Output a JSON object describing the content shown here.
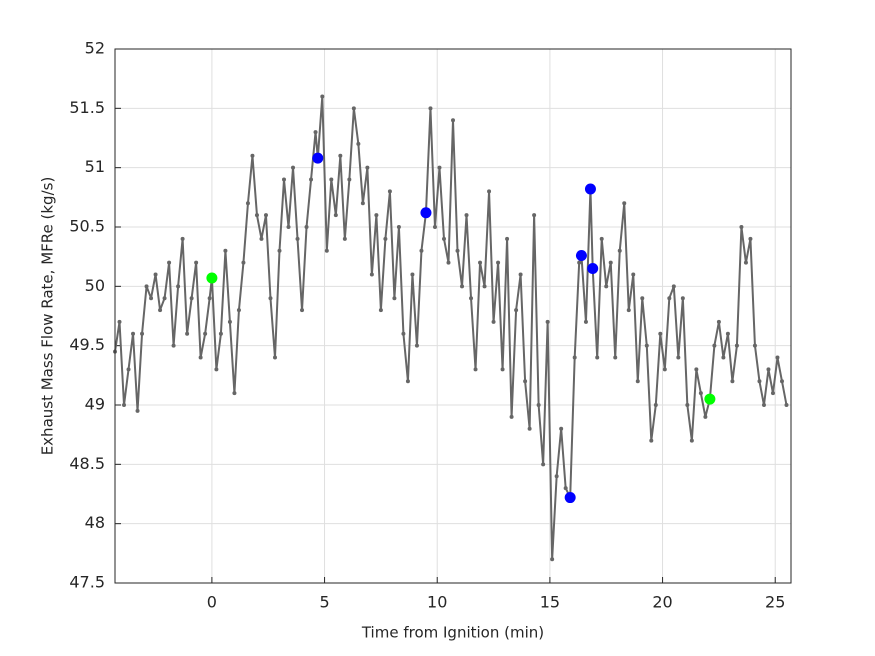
{
  "chart_data": {
    "type": "line",
    "xlabel": "Time from Ignition (min)",
    "ylabel": "Exhaust Mass Flow Rate, MFRe (kg/s)",
    "xlim": [
      -4.3,
      25.7
    ],
    "ylim": [
      47.5,
      52
    ],
    "xticks": [
      0,
      5,
      10,
      15,
      20,
      25
    ],
    "yticks": [
      47.5,
      48,
      48.5,
      49,
      49.5,
      50,
      50.5,
      51,
      51.5,
      52
    ],
    "grid": true,
    "series": [
      {
        "color": "#666666",
        "style": "line-markers",
        "x": [
          -4.3,
          -4.1,
          -3.9,
          -3.7,
          -3.5,
          -3.3,
          -3.1,
          -2.9,
          -2.7,
          -2.5,
          -2.3,
          -2.1,
          -1.9,
          -1.7,
          -1.5,
          -1.3,
          -1.1,
          -0.9,
          -0.7,
          -0.5,
          -0.3,
          -0.1,
          0.0,
          0.2,
          0.4,
          0.6,
          0.8,
          1.0,
          1.2,
          1.4,
          1.6,
          1.8,
          2.0,
          2.2,
          2.4,
          2.6,
          2.8,
          3.0,
          3.2,
          3.4,
          3.6,
          3.8,
          4.0,
          4.2,
          4.4,
          4.6,
          4.7,
          4.9,
          5.1,
          5.3,
          5.5,
          5.7,
          5.9,
          6.1,
          6.3,
          6.5,
          6.7,
          6.9,
          7.1,
          7.3,
          7.5,
          7.7,
          7.9,
          8.1,
          8.3,
          8.5,
          8.7,
          8.9,
          9.1,
          9.3,
          9.5,
          9.7,
          9.9,
          10.1,
          10.3,
          10.5,
          10.7,
          10.9,
          11.1,
          11.3,
          11.5,
          11.7,
          11.9,
          12.1,
          12.3,
          12.5,
          12.7,
          12.9,
          13.1,
          13.3,
          13.5,
          13.7,
          13.9,
          14.1,
          14.3,
          14.5,
          14.7,
          14.9,
          15.1,
          15.3,
          15.5,
          15.7,
          15.9,
          16.1,
          16.3,
          16.4,
          16.6,
          16.8,
          16.9,
          17.1,
          17.3,
          17.5,
          17.7,
          17.9,
          18.1,
          18.3,
          18.5,
          18.7,
          18.9,
          19.1,
          19.3,
          19.5,
          19.7,
          19.9,
          20.1,
          20.3,
          20.5,
          20.7,
          20.9,
          21.1,
          21.3,
          21.5,
          21.7,
          21.9,
          22.1,
          22.3,
          22.5,
          22.7,
          22.9,
          23.1,
          23.3,
          23.5,
          23.7,
          23.9,
          24.1,
          24.3,
          24.5,
          24.7,
          24.9,
          25.1,
          25.3,
          25.5
        ],
        "values": [
          49.45,
          49.7,
          49.0,
          49.3,
          49.6,
          48.95,
          49.6,
          50.0,
          49.9,
          50.1,
          49.8,
          49.9,
          50.2,
          49.5,
          50.0,
          50.4,
          49.6,
          49.9,
          50.2,
          49.4,
          49.6,
          49.9,
          50.07,
          49.3,
          49.6,
          50.3,
          49.7,
          49.1,
          49.8,
          50.2,
          50.7,
          51.1,
          50.6,
          50.4,
          50.6,
          49.9,
          49.4,
          50.3,
          50.9,
          50.5,
          51.0,
          50.4,
          49.8,
          50.5,
          50.9,
          51.3,
          51.08,
          51.6,
          50.3,
          50.9,
          50.6,
          51.1,
          50.4,
          50.9,
          51.5,
          51.2,
          50.7,
          51.0,
          50.1,
          50.6,
          49.8,
          50.4,
          50.8,
          49.9,
          50.5,
          49.6,
          49.2,
          50.1,
          49.5,
          50.3,
          50.62,
          51.5,
          50.5,
          51.0,
          50.4,
          50.2,
          51.4,
          50.3,
          50.0,
          50.6,
          49.9,
          49.3,
          50.2,
          50.0,
          50.8,
          49.7,
          50.2,
          49.3,
          50.4,
          48.9,
          49.8,
          50.1,
          49.2,
          48.8,
          50.6,
          49.0,
          48.5,
          49.7,
          47.7,
          48.4,
          48.8,
          48.3,
          48.22,
          49.4,
          50.2,
          50.26,
          49.7,
          50.82,
          50.15,
          49.4,
          50.4,
          50.0,
          50.2,
          49.4,
          50.3,
          50.7,
          49.8,
          50.1,
          49.2,
          49.9,
          49.5,
          48.7,
          49.0,
          49.6,
          49.3,
          49.9,
          50.0,
          49.4,
          49.9,
          49.0,
          48.7,
          49.3,
          49.1,
          48.9,
          49.05,
          49.5,
          49.7,
          49.4,
          49.6,
          49.2,
          49.5,
          50.5,
          50.2,
          50.4,
          49.5,
          49.2,
          49.0,
          49.3,
          49.1,
          49.4,
          49.2,
          49.0
        ]
      },
      {
        "color": "#0000ff",
        "style": "markers",
        "x": [
          4.7,
          9.5,
          15.9,
          16.4,
          16.8,
          16.9
        ],
        "values": [
          51.08,
          50.62,
          48.22,
          50.26,
          50.82,
          50.15
        ]
      },
      {
        "color": "#00ff00",
        "style": "markers",
        "x": [
          0.0,
          22.1
        ],
        "values": [
          50.07,
          49.05
        ]
      }
    ]
  }
}
